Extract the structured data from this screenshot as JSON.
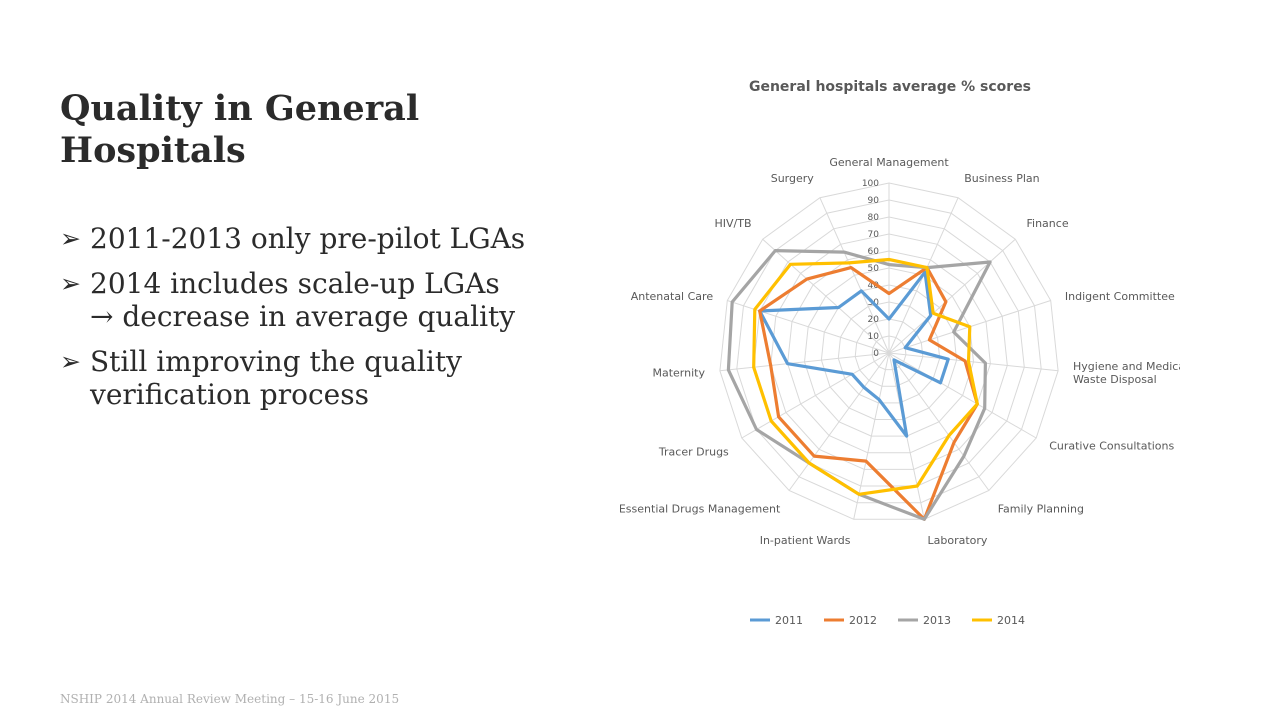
{
  "slide": {
    "title": "Quality in General Hospitals",
    "bullets": [
      {
        "icon": "➢",
        "text": "2011-2013 only pre-pilot LGAs"
      },
      {
        "icon": "➢",
        "text": "2014 includes scale-up LGAs → decrease in average quality"
      },
      {
        "icon": "➢",
        "text": "Still improving the quality verification process"
      }
    ],
    "footer": "NSHIP 2014 Annual Review Meeting – 15-16 June 2015"
  },
  "chart_data": {
    "type": "radar",
    "title": "General hospitals  average % scores",
    "categories": [
      "General Management",
      "Business Plan",
      "Finance",
      "Indigent Committee",
      "Hygiene and Medical Waste Disposal",
      "Curative Consultations",
      "Family Planning",
      "Laboratory",
      "In-patient Wards",
      "Essential Drugs Management",
      "Tracer Drugs",
      "Maternity",
      "Antenatal Care",
      "HIV/TB",
      "Surgery"
    ],
    "rlim": [
      0,
      100
    ],
    "ticks": [
      0,
      10,
      20,
      30,
      40,
      50,
      60,
      70,
      80,
      90,
      100
    ],
    "series": [
      {
        "name": "2011",
        "color": "#5B9BD5",
        "values": [
          20,
          52,
          33,
          10,
          35,
          35,
          5,
          50,
          28,
          25,
          25,
          60,
          80,
          40,
          40
        ]
      },
      {
        "name": "2012",
        "color": "#ED7D31",
        "values": [
          35,
          55,
          45,
          25,
          45,
          60,
          65,
          100,
          65,
          75,
          75,
          70,
          80,
          65,
          55
        ]
      },
      {
        "name": "2013",
        "color": "#A5A5A5",
        "values": [
          52,
          55,
          80,
          40,
          57,
          65,
          75,
          100,
          85,
          80,
          90,
          95,
          97,
          90,
          65
        ]
      },
      {
        "name": "2014",
        "color": "#FFC000",
        "values": [
          55,
          55,
          35,
          50,
          47,
          60,
          60,
          80,
          85,
          80,
          80,
          80,
          83,
          78,
          58
        ]
      }
    ],
    "legend": "bottom",
    "grid": true
  }
}
